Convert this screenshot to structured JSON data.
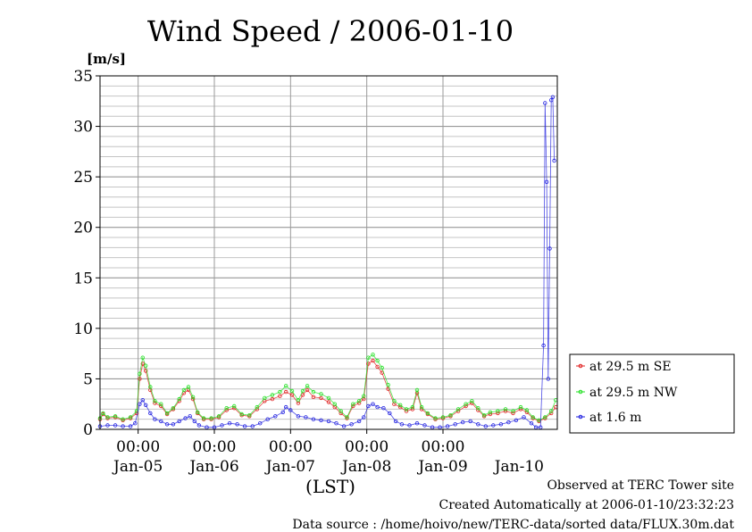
{
  "chart_data": {
    "type": "line",
    "title": "Wind Speed / 2006-01-10",
    "ylabel": "[m/s]",
    "xlabel": "(LST)",
    "ylim": [
      0,
      35
    ],
    "y_ticks": [
      0,
      5,
      10,
      15,
      20,
      25,
      30,
      35
    ],
    "y_minor_step": 1,
    "xlim": [
      0,
      6
    ],
    "x_unit": "days since 2006-01-04 12:00 LST",
    "x_time_ticks": [
      {
        "x": 0.5,
        "label": "00:00"
      },
      {
        "x": 1.5,
        "label": "00:00"
      },
      {
        "x": 2.5,
        "label": "00:00"
      },
      {
        "x": 3.5,
        "label": "00:00"
      },
      {
        "x": 4.5,
        "label": "00:00"
      }
    ],
    "x_date_ticks": [
      {
        "x": 0.5,
        "label": "Jan-05"
      },
      {
        "x": 1.5,
        "label": "Jan-06"
      },
      {
        "x": 2.5,
        "label": "Jan-07"
      },
      {
        "x": 3.5,
        "label": "Jan-08"
      },
      {
        "x": 4.5,
        "label": "Jan-09"
      },
      {
        "x": 5.5,
        "label": "Jan-10"
      }
    ],
    "grid": true,
    "legend_position": "right",
    "series": [
      {
        "name": "at 29.5 m SE",
        "color": "#e02020",
        "points": [
          [
            0.0,
            1.0
          ],
          [
            0.04,
            1.5
          ],
          [
            0.1,
            1.1
          ],
          [
            0.2,
            1.2
          ],
          [
            0.3,
            0.9
          ],
          [
            0.4,
            1.1
          ],
          [
            0.48,
            1.6
          ],
          [
            0.52,
            5.0
          ],
          [
            0.56,
            6.5
          ],
          [
            0.6,
            5.8
          ],
          [
            0.66,
            3.9
          ],
          [
            0.72,
            2.6
          ],
          [
            0.8,
            2.3
          ],
          [
            0.88,
            1.5
          ],
          [
            0.96,
            2.0
          ],
          [
            1.04,
            2.8
          ],
          [
            1.1,
            3.6
          ],
          [
            1.16,
            3.9
          ],
          [
            1.22,
            3.0
          ],
          [
            1.28,
            1.6
          ],
          [
            1.36,
            1.0
          ],
          [
            1.46,
            1.0
          ],
          [
            1.56,
            1.2
          ],
          [
            1.66,
            1.9
          ],
          [
            1.76,
            2.1
          ],
          [
            1.86,
            1.4
          ],
          [
            1.96,
            1.3
          ],
          [
            2.06,
            2.0
          ],
          [
            2.16,
            2.8
          ],
          [
            2.26,
            3.0
          ],
          [
            2.36,
            3.3
          ],
          [
            2.44,
            3.7
          ],
          [
            2.52,
            3.4
          ],
          [
            2.6,
            2.6
          ],
          [
            2.66,
            3.4
          ],
          [
            2.72,
            3.9
          ],
          [
            2.8,
            3.2
          ],
          [
            2.9,
            3.1
          ],
          [
            3.0,
            2.7
          ],
          [
            3.08,
            2.2
          ],
          [
            3.16,
            1.6
          ],
          [
            3.24,
            1.1
          ],
          [
            3.32,
            2.3
          ],
          [
            3.4,
            2.6
          ],
          [
            3.46,
            3.0
          ],
          [
            3.52,
            6.5
          ],
          [
            3.58,
            6.8
          ],
          [
            3.64,
            6.2
          ],
          [
            3.7,
            5.6
          ],
          [
            3.78,
            4.0
          ],
          [
            3.86,
            2.5
          ],
          [
            3.94,
            2.2
          ],
          [
            4.02,
            1.8
          ],
          [
            4.1,
            2.0
          ],
          [
            4.16,
            3.6
          ],
          [
            4.22,
            2.0
          ],
          [
            4.3,
            1.5
          ],
          [
            4.4,
            1.0
          ],
          [
            4.5,
            1.1
          ],
          [
            4.6,
            1.3
          ],
          [
            4.7,
            1.8
          ],
          [
            4.8,
            2.3
          ],
          [
            4.88,
            2.6
          ],
          [
            4.96,
            1.9
          ],
          [
            5.04,
            1.3
          ],
          [
            5.12,
            1.5
          ],
          [
            5.22,
            1.6
          ],
          [
            5.32,
            1.8
          ],
          [
            5.42,
            1.6
          ],
          [
            5.52,
            2.0
          ],
          [
            5.6,
            1.7
          ],
          [
            5.68,
            1.1
          ],
          [
            5.76,
            0.8
          ],
          [
            5.84,
            1.1
          ],
          [
            5.92,
            1.6
          ],
          [
            5.98,
            2.2
          ]
        ]
      },
      {
        "name": "at 29.5 m NW",
        "color": "#20e020",
        "points": [
          [
            0.0,
            1.1
          ],
          [
            0.04,
            1.6
          ],
          [
            0.1,
            1.2
          ],
          [
            0.2,
            1.3
          ],
          [
            0.3,
            1.0
          ],
          [
            0.4,
            1.2
          ],
          [
            0.48,
            1.8
          ],
          [
            0.52,
            5.5
          ],
          [
            0.56,
            7.1
          ],
          [
            0.6,
            6.3
          ],
          [
            0.66,
            4.2
          ],
          [
            0.72,
            2.8
          ],
          [
            0.8,
            2.5
          ],
          [
            0.88,
            1.6
          ],
          [
            0.96,
            2.1
          ],
          [
            1.04,
            3.0
          ],
          [
            1.1,
            3.9
          ],
          [
            1.16,
            4.2
          ],
          [
            1.22,
            3.2
          ],
          [
            1.28,
            1.7
          ],
          [
            1.36,
            1.1
          ],
          [
            1.46,
            1.1
          ],
          [
            1.56,
            1.3
          ],
          [
            1.66,
            2.1
          ],
          [
            1.76,
            2.3
          ],
          [
            1.86,
            1.5
          ],
          [
            1.96,
            1.4
          ],
          [
            2.06,
            2.2
          ],
          [
            2.16,
            3.1
          ],
          [
            2.26,
            3.4
          ],
          [
            2.36,
            3.7
          ],
          [
            2.44,
            4.3
          ],
          [
            2.52,
            3.8
          ],
          [
            2.6,
            2.9
          ],
          [
            2.66,
            3.8
          ],
          [
            2.72,
            4.3
          ],
          [
            2.8,
            3.7
          ],
          [
            2.9,
            3.5
          ],
          [
            3.0,
            3.1
          ],
          [
            3.08,
            2.5
          ],
          [
            3.16,
            1.8
          ],
          [
            3.24,
            1.2
          ],
          [
            3.32,
            2.5
          ],
          [
            3.4,
            2.8
          ],
          [
            3.46,
            3.3
          ],
          [
            3.52,
            7.1
          ],
          [
            3.58,
            7.4
          ],
          [
            3.64,
            6.8
          ],
          [
            3.7,
            6.1
          ],
          [
            3.78,
            4.4
          ],
          [
            3.86,
            2.8
          ],
          [
            3.94,
            2.4
          ],
          [
            4.02,
            2.0
          ],
          [
            4.1,
            2.2
          ],
          [
            4.16,
            3.9
          ],
          [
            4.22,
            2.2
          ],
          [
            4.3,
            1.6
          ],
          [
            4.4,
            1.1
          ],
          [
            4.5,
            1.2
          ],
          [
            4.6,
            1.4
          ],
          [
            4.7,
            2.0
          ],
          [
            4.8,
            2.5
          ],
          [
            4.88,
            2.8
          ],
          [
            4.96,
            2.1
          ],
          [
            5.04,
            1.4
          ],
          [
            5.12,
            1.7
          ],
          [
            5.22,
            1.8
          ],
          [
            5.32,
            2.0
          ],
          [
            5.42,
            1.8
          ],
          [
            5.52,
            2.2
          ],
          [
            5.6,
            1.9
          ],
          [
            5.68,
            1.2
          ],
          [
            5.76,
            0.9
          ],
          [
            5.84,
            1.2
          ],
          [
            5.92,
            1.8
          ],
          [
            5.98,
            2.9
          ]
        ]
      },
      {
        "name": "at 1.6 m",
        "color": "#2020e0",
        "points": [
          [
            0.0,
            0.3
          ],
          [
            0.1,
            0.4
          ],
          [
            0.2,
            0.4
          ],
          [
            0.3,
            0.3
          ],
          [
            0.4,
            0.3
          ],
          [
            0.46,
            0.6
          ],
          [
            0.52,
            2.5
          ],
          [
            0.56,
            2.9
          ],
          [
            0.6,
            2.4
          ],
          [
            0.66,
            1.6
          ],
          [
            0.72,
            1.0
          ],
          [
            0.8,
            0.8
          ],
          [
            0.88,
            0.5
          ],
          [
            0.96,
            0.5
          ],
          [
            1.04,
            0.8
          ],
          [
            1.12,
            1.1
          ],
          [
            1.18,
            1.3
          ],
          [
            1.24,
            0.8
          ],
          [
            1.3,
            0.4
          ],
          [
            1.4,
            0.2
          ],
          [
            1.5,
            0.2
          ],
          [
            1.6,
            0.4
          ],
          [
            1.7,
            0.6
          ],
          [
            1.8,
            0.5
          ],
          [
            1.9,
            0.3
          ],
          [
            2.0,
            0.3
          ],
          [
            2.1,
            0.6
          ],
          [
            2.2,
            1.0
          ],
          [
            2.3,
            1.3
          ],
          [
            2.4,
            1.7
          ],
          [
            2.44,
            2.2
          ],
          [
            2.5,
            1.9
          ],
          [
            2.6,
            1.3
          ],
          [
            2.7,
            1.2
          ],
          [
            2.8,
            1.0
          ],
          [
            2.9,
            0.9
          ],
          [
            3.0,
            0.8
          ],
          [
            3.1,
            0.6
          ],
          [
            3.2,
            0.3
          ],
          [
            3.3,
            0.5
          ],
          [
            3.4,
            0.8
          ],
          [
            3.46,
            1.2
          ],
          [
            3.52,
            2.3
          ],
          [
            3.58,
            2.5
          ],
          [
            3.64,
            2.2
          ],
          [
            3.72,
            2.1
          ],
          [
            3.8,
            1.6
          ],
          [
            3.88,
            0.8
          ],
          [
            3.96,
            0.5
          ],
          [
            4.06,
            0.4
          ],
          [
            4.16,
            0.6
          ],
          [
            4.26,
            0.4
          ],
          [
            4.36,
            0.2
          ],
          [
            4.46,
            0.2
          ],
          [
            4.56,
            0.3
          ],
          [
            4.66,
            0.5
          ],
          [
            4.76,
            0.7
          ],
          [
            4.86,
            0.8
          ],
          [
            4.96,
            0.5
          ],
          [
            5.06,
            0.3
          ],
          [
            5.16,
            0.4
          ],
          [
            5.26,
            0.5
          ],
          [
            5.36,
            0.7
          ],
          [
            5.46,
            0.9
          ],
          [
            5.56,
            1.2
          ],
          [
            5.66,
            0.6
          ],
          [
            5.72,
            0.2
          ],
          [
            5.78,
            0.2
          ],
          [
            5.82,
            8.3
          ],
          [
            5.84,
            32.3
          ],
          [
            5.86,
            24.5
          ],
          [
            5.88,
            5.0
          ],
          [
            5.9,
            17.9
          ],
          [
            5.92,
            32.6
          ],
          [
            5.94,
            32.9
          ],
          [
            5.96,
            26.6
          ]
        ]
      }
    ]
  },
  "footer": {
    "observed": "Observed at TERC Tower site",
    "created": "Created Automatically at 2006-01-10/23:32:23",
    "source": "Data source : /home/hoivo/new/TERC-data/sorted  data/FLUX.30m.dat"
  }
}
